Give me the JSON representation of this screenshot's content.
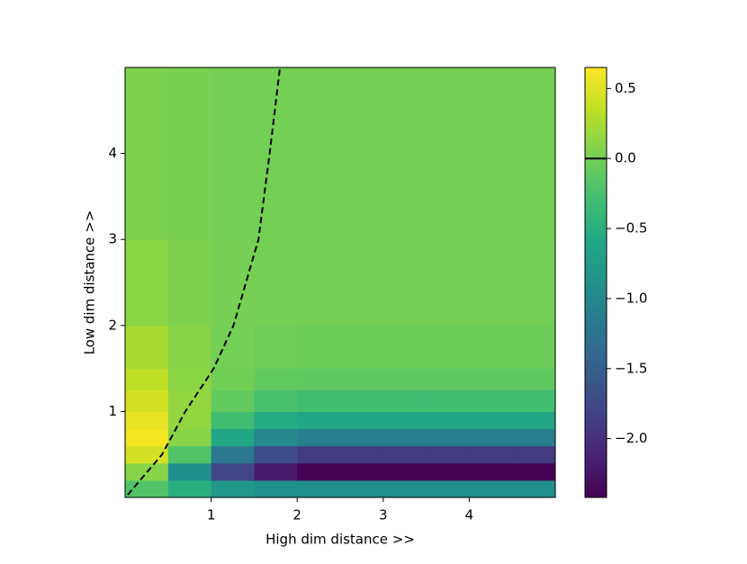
{
  "chart_data": {
    "type": "heatmap",
    "x_label": "High dim distance >>",
    "y_label": "Low dim distance >>",
    "xlim": [
      0,
      5
    ],
    "ylim": [
      0,
      5
    ],
    "xticks": [
      1,
      2,
      3,
      4
    ],
    "yticks": [
      1,
      2,
      3,
      4
    ],
    "x_edges": [
      0,
      0.5,
      1,
      1.5,
      2,
      2.5,
      3,
      3.5,
      4,
      4.5,
      5
    ],
    "y_edges": [
      0,
      0.2,
      0.4,
      0.6,
      0.8,
      1,
      1.25,
      1.5,
      2,
      3,
      5
    ],
    "z": [
      [
        -0.2,
        -0.5,
        -0.8,
        -0.9,
        -0.9,
        -0.9,
        -0.9,
        -0.9,
        -0.9,
        -0.9
      ],
      [
        0.1,
        -0.9,
        -1.8,
        -2.2,
        -2.4,
        -2.4,
        -2.4,
        -2.4,
        -2.4,
        -2.4
      ],
      [
        0.45,
        -0.2,
        -1.2,
        -1.7,
        -1.9,
        -1.9,
        -1.9,
        -1.9,
        -1.9,
        -1.9
      ],
      [
        0.6,
        0.1,
        -0.6,
        -1.0,
        -1.1,
        -1.1,
        -1.1,
        -1.1,
        -1.1,
        -1.1
      ],
      [
        0.55,
        0.15,
        -0.3,
        -0.55,
        -0.6,
        -0.6,
        -0.6,
        -0.6,
        -0.6,
        -0.6
      ],
      [
        0.45,
        0.15,
        -0.1,
        -0.25,
        -0.3,
        -0.3,
        -0.3,
        -0.3,
        -0.3,
        -0.3
      ],
      [
        0.35,
        0.12,
        -0.02,
        -0.1,
        -0.12,
        -0.12,
        -0.12,
        -0.12,
        -0.12,
        -0.12
      ],
      [
        0.25,
        0.1,
        0,
        -0.03,
        -0.05,
        -0.05,
        -0.05,
        -0.05,
        -0.05,
        -0.05
      ],
      [
        0.12,
        0.06,
        0.02,
        0,
        -0.01,
        -0.01,
        -0.01,
        -0.01,
        -0.01,
        -0.01
      ],
      [
        0.05,
        0.03,
        0.01,
        0,
        0,
        0,
        0,
        0,
        0,
        0
      ]
    ],
    "colormap": "viridis",
    "clim": [
      -2.42,
      0.65
    ],
    "cticks": [
      {
        "value": -2.0,
        "label": "−2.0"
      },
      {
        "value": -1.5,
        "label": "−1.5"
      },
      {
        "value": -1.0,
        "label": "−1.0"
      },
      {
        "value": -0.5,
        "label": "−0.5"
      },
      {
        "value": 0,
        "label": "0.0"
      },
      0.5
    ],
    "contour_level": 0,
    "contour": {
      "color": "#000000",
      "x": [
        0.03,
        0.43,
        0.7,
        1.03,
        1.26,
        1.55,
        1.68,
        1.8
      ],
      "y": [
        0.03,
        0.5,
        1,
        1.5,
        2,
        3,
        4,
        5
      ]
    }
  }
}
